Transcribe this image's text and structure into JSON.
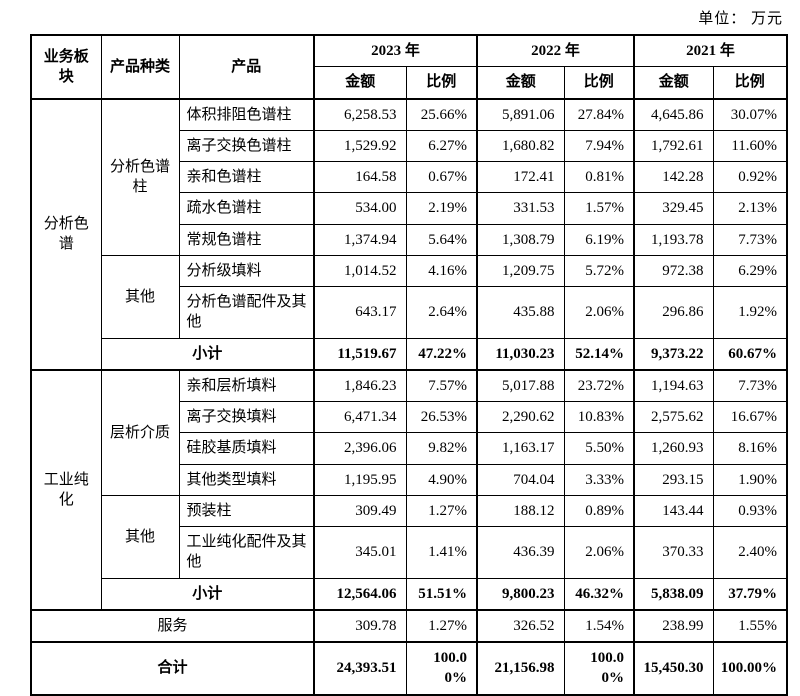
{
  "unit_label": "单位： 万元",
  "table": {
    "header": {
      "group_cols": [
        "业务板块",
        "产品种类",
        "产品"
      ],
      "years": [
        "2023 年",
        "2022 年",
        "2021 年"
      ],
      "measures": [
        "金额",
        "比例"
      ]
    },
    "rows": [
      {
        "cells": [
          {
            "t": "分析色谱",
            "k": "seg",
            "rs": 8
          },
          {
            "t": "分析色谱柱",
            "k": "cat",
            "rs": 5
          },
          {
            "t": "体积排阻色谱柱",
            "k": "prod"
          },
          {
            "t": "6,258.53",
            "k": "amt"
          },
          {
            "t": "25.66%",
            "k": "pct"
          },
          {
            "t": "5,891.06",
            "k": "amt"
          },
          {
            "t": "27.84%",
            "k": "pct"
          },
          {
            "t": "4,645.86",
            "k": "amt"
          },
          {
            "t": "30.07%",
            "k": "pct"
          }
        ]
      },
      {
        "cells": [
          {
            "t": "离子交换色谱柱",
            "k": "prod"
          },
          {
            "t": "1,529.92",
            "k": "amt"
          },
          {
            "t": "6.27%",
            "k": "pct"
          },
          {
            "t": "1,680.82",
            "k": "amt"
          },
          {
            "t": "7.94%",
            "k": "pct"
          },
          {
            "t": "1,792.61",
            "k": "amt"
          },
          {
            "t": "11.60%",
            "k": "pct"
          }
        ]
      },
      {
        "cells": [
          {
            "t": "亲和色谱柱",
            "k": "prod"
          },
          {
            "t": "164.58",
            "k": "amt"
          },
          {
            "t": "0.67%",
            "k": "pct"
          },
          {
            "t": "172.41",
            "k": "amt"
          },
          {
            "t": "0.81%",
            "k": "pct"
          },
          {
            "t": "142.28",
            "k": "amt"
          },
          {
            "t": "0.92%",
            "k": "pct"
          }
        ]
      },
      {
        "cells": [
          {
            "t": "疏水色谱柱",
            "k": "prod"
          },
          {
            "t": "534.00",
            "k": "amt"
          },
          {
            "t": "2.19%",
            "k": "pct"
          },
          {
            "t": "331.53",
            "k": "amt"
          },
          {
            "t": "1.57%",
            "k": "pct"
          },
          {
            "t": "329.45",
            "k": "amt"
          },
          {
            "t": "2.13%",
            "k": "pct"
          }
        ]
      },
      {
        "cells": [
          {
            "t": "常规色谱柱",
            "k": "prod"
          },
          {
            "t": "1,374.94",
            "k": "amt"
          },
          {
            "t": "5.64%",
            "k": "pct"
          },
          {
            "t": "1,308.79",
            "k": "amt"
          },
          {
            "t": "6.19%",
            "k": "pct"
          },
          {
            "t": "1,193.78",
            "k": "amt"
          },
          {
            "t": "7.73%",
            "k": "pct"
          }
        ]
      },
      {
        "cells": [
          {
            "t": "其他",
            "k": "cat",
            "rs": 2
          },
          {
            "t": "分析级填料",
            "k": "prod"
          },
          {
            "t": "1,014.52",
            "k": "amt"
          },
          {
            "t": "4.16%",
            "k": "pct"
          },
          {
            "t": "1,209.75",
            "k": "amt"
          },
          {
            "t": "5.72%",
            "k": "pct"
          },
          {
            "t": "972.38",
            "k": "amt"
          },
          {
            "t": "6.29%",
            "k": "pct"
          }
        ]
      },
      {
        "cells": [
          {
            "t": "分析色谱配件及其他",
            "k": "prod"
          },
          {
            "t": "643.17",
            "k": "amt"
          },
          {
            "t": "2.64%",
            "k": "pct"
          },
          {
            "t": "435.88",
            "k": "amt"
          },
          {
            "t": "2.06%",
            "k": "pct"
          },
          {
            "t": "296.86",
            "k": "amt"
          },
          {
            "t": "1.92%",
            "k": "pct"
          }
        ]
      },
      {
        "cells": [
          {
            "t": "小计",
            "k": "lbl",
            "cs": 2,
            "b": true
          },
          {
            "t": "11,519.67",
            "k": "amt",
            "b": true
          },
          {
            "t": "47.22%",
            "k": "pct",
            "b": true
          },
          {
            "t": "11,030.23",
            "k": "amt",
            "b": true
          },
          {
            "t": "52.14%",
            "k": "pct",
            "b": true
          },
          {
            "t": "9,373.22",
            "k": "amt",
            "b": true
          },
          {
            "t": "60.67%",
            "k": "pct",
            "b": true
          }
        ]
      },
      {
        "sep": true,
        "cells": [
          {
            "t": "工业纯化",
            "k": "seg",
            "rs": 7
          },
          {
            "t": "层析介质",
            "k": "cat",
            "rs": 4
          },
          {
            "t": "亲和层析填料",
            "k": "prod"
          },
          {
            "t": "1,846.23",
            "k": "amt"
          },
          {
            "t": "7.57%",
            "k": "pct"
          },
          {
            "t": "5,017.88",
            "k": "amt"
          },
          {
            "t": "23.72%",
            "k": "pct"
          },
          {
            "t": "1,194.63",
            "k": "amt"
          },
          {
            "t": "7.73%",
            "k": "pct"
          }
        ]
      },
      {
        "cells": [
          {
            "t": "离子交换填料",
            "k": "prod"
          },
          {
            "t": "6,471.34",
            "k": "amt"
          },
          {
            "t": "26.53%",
            "k": "pct"
          },
          {
            "t": "2,290.62",
            "k": "amt"
          },
          {
            "t": "10.83%",
            "k": "pct"
          },
          {
            "t": "2,575.62",
            "k": "amt"
          },
          {
            "t": "16.67%",
            "k": "pct"
          }
        ]
      },
      {
        "cells": [
          {
            "t": "硅胶基质填料",
            "k": "prod"
          },
          {
            "t": "2,396.06",
            "k": "amt"
          },
          {
            "t": "9.82%",
            "k": "pct"
          },
          {
            "t": "1,163.17",
            "k": "amt"
          },
          {
            "t": "5.50%",
            "k": "pct"
          },
          {
            "t": "1,260.93",
            "k": "amt"
          },
          {
            "t": "8.16%",
            "k": "pct"
          }
        ]
      },
      {
        "cells": [
          {
            "t": "其他类型填料",
            "k": "prod"
          },
          {
            "t": "1,195.95",
            "k": "amt"
          },
          {
            "t": "4.90%",
            "k": "pct"
          },
          {
            "t": "704.04",
            "k": "amt"
          },
          {
            "t": "3.33%",
            "k": "pct"
          },
          {
            "t": "293.15",
            "k": "amt"
          },
          {
            "t": "1.90%",
            "k": "pct"
          }
        ]
      },
      {
        "cells": [
          {
            "t": "其他",
            "k": "cat",
            "rs": 2
          },
          {
            "t": "预装柱",
            "k": "prod"
          },
          {
            "t": "309.49",
            "k": "amt"
          },
          {
            "t": "1.27%",
            "k": "pct"
          },
          {
            "t": "188.12",
            "k": "amt"
          },
          {
            "t": "0.89%",
            "k": "pct"
          },
          {
            "t": "143.44",
            "k": "amt"
          },
          {
            "t": "0.93%",
            "k": "pct"
          }
        ]
      },
      {
        "cells": [
          {
            "t": "工业纯化配件及其他",
            "k": "prod"
          },
          {
            "t": "345.01",
            "k": "amt"
          },
          {
            "t": "1.41%",
            "k": "pct"
          },
          {
            "t": "436.39",
            "k": "amt"
          },
          {
            "t": "2.06%",
            "k": "pct"
          },
          {
            "t": "370.33",
            "k": "amt"
          },
          {
            "t": "2.40%",
            "k": "pct"
          }
        ]
      },
      {
        "cells": [
          {
            "t": "小计",
            "k": "lbl",
            "cs": 2,
            "b": true
          },
          {
            "t": "12,564.06",
            "k": "amt",
            "b": true
          },
          {
            "t": "51.51%",
            "k": "pct",
            "b": true
          },
          {
            "t": "9,800.23",
            "k": "amt",
            "b": true
          },
          {
            "t": "46.32%",
            "k": "pct",
            "b": true
          },
          {
            "t": "5,838.09",
            "k": "amt",
            "b": true
          },
          {
            "t": "37.79%",
            "k": "pct",
            "b": true
          }
        ]
      },
      {
        "sep": true,
        "cells": [
          {
            "t": "服务",
            "k": "lbl",
            "cs": 3
          },
          {
            "t": "309.78",
            "k": "amt"
          },
          {
            "t": "1.27%",
            "k": "pct"
          },
          {
            "t": "326.52",
            "k": "amt"
          },
          {
            "t": "1.54%",
            "k": "pct"
          },
          {
            "t": "238.99",
            "k": "amt"
          },
          {
            "t": "1.55%",
            "k": "pct"
          }
        ]
      },
      {
        "sep": true,
        "cells": [
          {
            "t": "合计",
            "k": "lbl",
            "cs": 3,
            "b": true
          },
          {
            "t": "24,393.51",
            "k": "amt",
            "b": true
          },
          {
            "t": "100.00%",
            "k": "pct",
            "b": true
          },
          {
            "t": "21,156.98",
            "k": "amt",
            "b": true
          },
          {
            "t": "100.00%",
            "k": "pct",
            "b": true
          },
          {
            "t": "15,450.30",
            "k": "amt",
            "b": true
          },
          {
            "t": "100.00%",
            "k": "pct",
            "b": true
          }
        ]
      }
    ]
  }
}
